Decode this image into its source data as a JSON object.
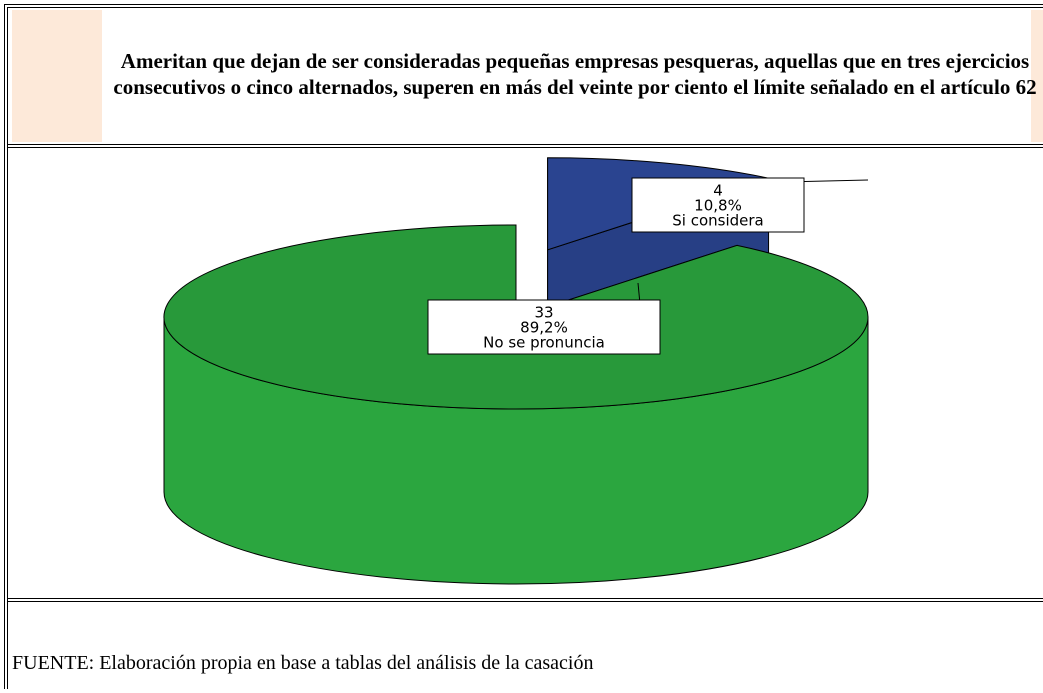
{
  "chart_data": {
    "type": "pie3d",
    "title": "Ameritan que dejan de ser consideradas pequeñas empresas pesqueras, aquellas que en tres ejercicios consecutivos o cinco alternados, superen en más del veinte por ciento el límite señalado en el artículo 62",
    "categories": [
      "No se pronuncia",
      "Si considera"
    ],
    "values": [
      89.2,
      10.8
    ],
    "value_labels": [
      "89,2%",
      "10,8%"
    ],
    "counts": [
      33,
      4
    ],
    "colors": [
      "#2ba63f",
      "#2e4a9c"
    ],
    "source": "FUENTE: Elaboración propia en base a tablas del  análisis de la casación"
  }
}
